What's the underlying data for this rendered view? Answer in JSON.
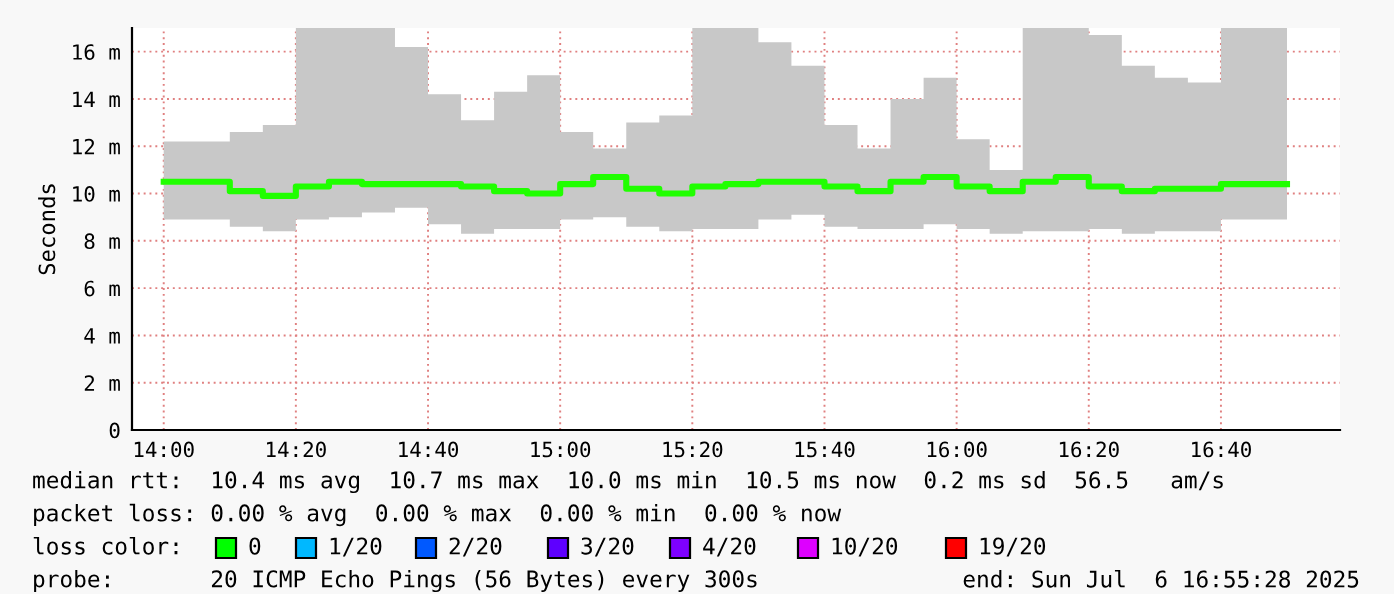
{
  "chart_data": {
    "type": "step",
    "ylabel": "Seconds",
    "x": [
      14.0,
      14.0833,
      14.1667,
      14.25,
      14.3333,
      14.4167,
      14.5,
      14.5833,
      14.6667,
      14.75,
      14.8333,
      14.9167,
      15.0,
      15.0833,
      15.1667,
      15.25,
      15.3333,
      15.4167,
      15.5,
      15.5833,
      15.6667,
      15.75,
      15.8333,
      15.9167,
      16.0,
      16.0833,
      16.1667,
      16.25,
      16.3333,
      16.4167,
      16.5,
      16.5833,
      16.6667,
      16.75,
      16.8333
    ],
    "series": [
      {
        "color": "#20ff00",
        "values": [
          10.5,
          10.5,
          10.1,
          9.9,
          10.3,
          10.5,
          10.4,
          10.4,
          10.4,
          10.3,
          10.1,
          10.0,
          10.4,
          10.7,
          10.2,
          10.0,
          10.3,
          10.4,
          10.5,
          10.5,
          10.3,
          10.1,
          10.5,
          10.7,
          10.3,
          10.1,
          10.5,
          10.7,
          10.3,
          10.1,
          10.2,
          10.2,
          10.4,
          10.4,
          10.4
        ],
        "lower": [
          8.9,
          8.9,
          8.6,
          8.4,
          8.9,
          9.0,
          9.2,
          9.4,
          8.7,
          8.3,
          8.5,
          8.5,
          8.9,
          9.0,
          8.6,
          8.4,
          8.5,
          8.5,
          8.9,
          9.1,
          8.6,
          8.5,
          8.5,
          8.7,
          8.5,
          8.3,
          8.4,
          8.4,
          8.5,
          8.3,
          8.4,
          8.4,
          8.9,
          8.9,
          8.9
        ],
        "upper": [
          12.2,
          12.2,
          12.6,
          12.9,
          17.0,
          17.0,
          17.0,
          16.2,
          14.2,
          13.1,
          14.3,
          15.0,
          12.6,
          11.9,
          13.0,
          13.3,
          17.0,
          17.0,
          16.4,
          15.4,
          12.9,
          11.9,
          14.0,
          14.9,
          12.3,
          11.0,
          17.0,
          17.0,
          16.7,
          15.4,
          14.9,
          14.7,
          17.0,
          17.0,
          17.0
        ]
      }
    ],
    "xlim": [
      13.92,
      16.967
    ],
    "xticks": [
      {
        "value": 14.0,
        "label": "14:00"
      },
      {
        "value": 14.3333,
        "label": "14:20"
      },
      {
        "value": 14.6667,
        "label": "14:40"
      },
      {
        "value": 15.0,
        "label": "15:00"
      },
      {
        "value": 15.3333,
        "label": "15:20"
      },
      {
        "value": 15.6667,
        "label": "15:40"
      },
      {
        "value": 16.0,
        "label": "16:00"
      },
      {
        "value": 16.3333,
        "label": "16:20"
      },
      {
        "value": 16.6667,
        "label": "16:40"
      }
    ],
    "ylim": [
      0,
      17
    ],
    "yticks": [
      0,
      {
        "value": 2,
        "label": "2 m"
      },
      {
        "value": 4,
        "label": "4 m"
      },
      {
        "value": 6,
        "label": "6 m"
      },
      {
        "value": 8,
        "label": "8 m"
      },
      {
        "value": 10,
        "label": "10 m"
      },
      {
        "value": 12,
        "label": "12 m"
      },
      {
        "value": 14,
        "label": "14 m"
      },
      {
        "value": 16,
        "label": "16 m"
      }
    ],
    "grid": true,
    "line_style": "solid",
    "annotations": [
      "median rtt:  10.4 ms avg  10.7 ms max  10.0 ms min  10.5 ms now  0.2 ms sd  56.5   am/s",
      "packet loss: 0.00 % avg  0.00 % max  0.00 % min  0.00 % now",
      "loss color:",
      "0",
      "1/20",
      "2/20",
      "3/20",
      "4/20",
      "10/20",
      "19/20",
      "probe:       20 ICMP Echo Pings (56 Bytes) every 300s",
      "end: Sun Jul  6 16:55:28 2025"
    ]
  }
}
